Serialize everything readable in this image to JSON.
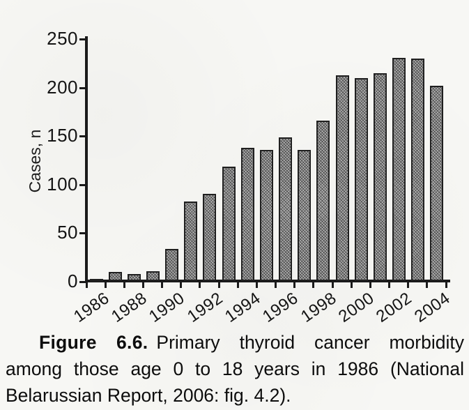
{
  "figure": {
    "caption_label": "Figure 6.6.",
    "caption_text": "Primary thyroid cancer morbidity among those age 0 to 18 years in 1986 (National Belarussian Report, 2006: fig. 4.2)."
  },
  "chart_data": {
    "type": "bar",
    "title": "",
    "xlabel": "",
    "ylabel": "Cases, n",
    "ylim": [
      0,
      250
    ],
    "yticks": [
      0,
      50,
      100,
      150,
      200,
      250
    ],
    "grid": false,
    "legend": "none",
    "categories": [
      1986,
      1987,
      1988,
      1989,
      1990,
      1991,
      1992,
      1993,
      1994,
      1995,
      1996,
      1997,
      1998,
      1999,
      2000,
      2001,
      2002,
      2003,
      2004
    ],
    "values": [
      2,
      9,
      7,
      10,
      33,
      82,
      90,
      118,
      137,
      135,
      148,
      135,
      165,
      212,
      209,
      214,
      230,
      229,
      201
    ],
    "xtick_labels": [
      "1986",
      "1988",
      "1990",
      "1992",
      "1994",
      "1996",
      "1998",
      "2000",
      "2002",
      "2004"
    ],
    "bar_fill_color": "#a3a3a3",
    "bar_pattern": "crosshatch-halftone",
    "bar_outline_color": "#1f1f1f",
    "axis_color": "#1a1a1a",
    "background_color": "#f7f7f4"
  }
}
